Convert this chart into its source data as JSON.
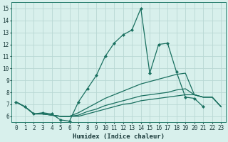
{
  "xlabel": "Humidex (Indice chaleur)",
  "bg_color": "#d8f0ec",
  "grid_color": "#b8d8d4",
  "line_color": "#1a7060",
  "xlim": [
    -0.5,
    23.5
  ],
  "ylim": [
    5.5,
    15.5
  ],
  "xticks": [
    0,
    1,
    2,
    3,
    4,
    5,
    6,
    7,
    8,
    9,
    10,
    11,
    12,
    13,
    14,
    15,
    16,
    17,
    18,
    19,
    20,
    21,
    22,
    23
  ],
  "yticks": [
    6,
    7,
    8,
    9,
    10,
    11,
    12,
    13,
    14,
    15
  ],
  "series": [
    {
      "x": [
        0,
        1,
        2,
        3,
        4,
        5,
        6,
        7,
        8,
        9,
        10,
        11,
        12,
        13,
        14,
        15,
        16,
        17,
        18,
        19,
        20,
        21
      ],
      "y": [
        7.2,
        6.8,
        6.2,
        6.3,
        6.2,
        5.7,
        5.6,
        7.2,
        8.3,
        9.4,
        11.0,
        12.1,
        12.8,
        13.2,
        15.0,
        9.6,
        12.0,
        12.1,
        9.7,
        7.6,
        7.5,
        6.8
      ],
      "marker": "D",
      "markersize": 2.0,
      "linewidth": 0.9
    },
    {
      "x": [
        0,
        1,
        2,
        3,
        4,
        5,
        6,
        7,
        8,
        9,
        10,
        11,
        12,
        13,
        14,
        15,
        16,
        17,
        18,
        19,
        20,
        21,
        22,
        23
      ],
      "y": [
        7.2,
        6.8,
        6.2,
        6.2,
        6.1,
        6.0,
        6.0,
        6.3,
        6.7,
        7.1,
        7.5,
        7.8,
        8.1,
        8.4,
        8.7,
        8.9,
        9.1,
        9.3,
        9.5,
        9.6,
        7.8,
        7.6,
        7.6,
        6.8
      ],
      "marker": null,
      "markersize": 0,
      "linewidth": 0.9
    },
    {
      "x": [
        0,
        1,
        2,
        3,
        4,
        5,
        6,
        7,
        8,
        9,
        10,
        11,
        12,
        13,
        14,
        15,
        16,
        17,
        18,
        19,
        20,
        21,
        22,
        23
      ],
      "y": [
        7.2,
        6.8,
        6.2,
        6.2,
        6.1,
        6.0,
        6.0,
        6.1,
        6.4,
        6.6,
        6.9,
        7.1,
        7.3,
        7.5,
        7.7,
        7.8,
        7.9,
        8.0,
        8.2,
        8.3,
        7.8,
        7.6,
        7.6,
        6.8
      ],
      "marker": null,
      "markersize": 0,
      "linewidth": 0.9
    },
    {
      "x": [
        0,
        1,
        2,
        3,
        4,
        5,
        6,
        7,
        8,
        9,
        10,
        11,
        12,
        13,
        14,
        15,
        16,
        17,
        18,
        19,
        20,
        21,
        22,
        23
      ],
      "y": [
        7.2,
        6.8,
        6.2,
        6.2,
        6.1,
        6.0,
        6.0,
        6.0,
        6.2,
        6.4,
        6.6,
        6.8,
        7.0,
        7.1,
        7.3,
        7.4,
        7.5,
        7.6,
        7.7,
        7.8,
        7.8,
        7.6,
        7.6,
        6.8
      ],
      "marker": null,
      "markersize": 0,
      "linewidth": 0.9
    }
  ]
}
